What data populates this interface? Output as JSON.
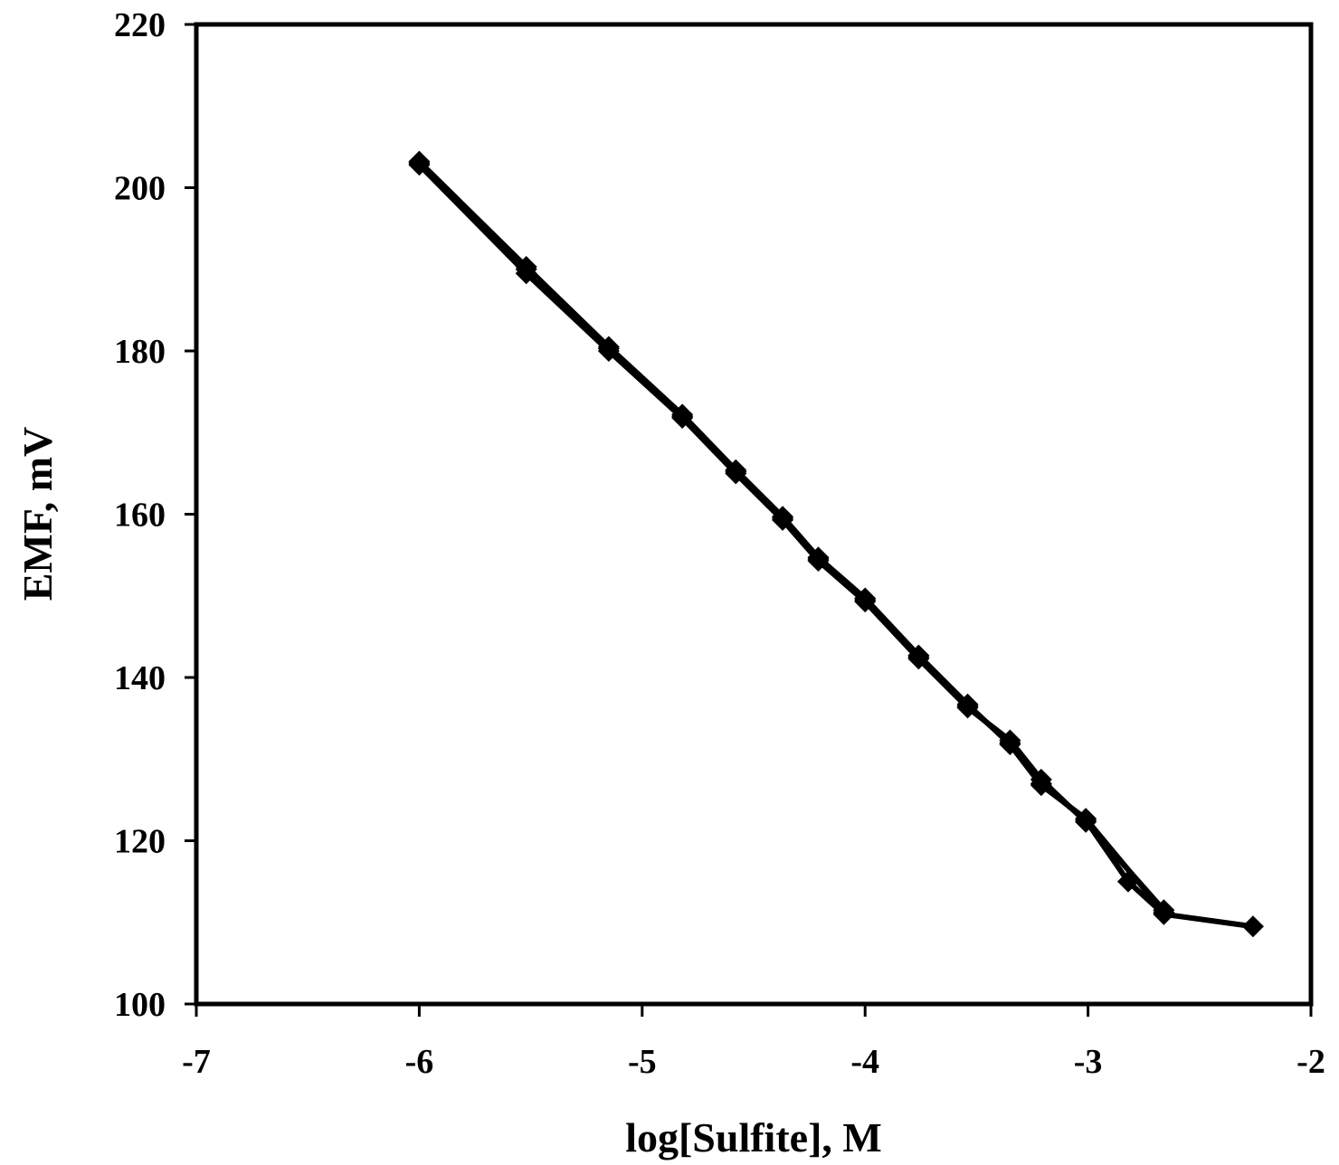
{
  "chart_data": {
    "type": "line",
    "title": "",
    "xlabel": "log[Sulfite], M",
    "ylabel": "EMF, mV",
    "xlim": [
      -7,
      -2
    ],
    "ylim": [
      100,
      220
    ],
    "x_ticks": [
      -7,
      -6,
      -5,
      -4,
      -3,
      -2
    ],
    "y_ticks": [
      100,
      120,
      140,
      160,
      180,
      200,
      220
    ],
    "x_tick_labels": [
      "-7",
      "-6",
      "-5",
      "-4",
      "-3",
      "-2"
    ],
    "y_tick_labels": [
      "100",
      "120",
      "140",
      "160",
      "180",
      "200",
      "220"
    ],
    "grid": false,
    "legend": "none",
    "line_color": "#000000",
    "marker": "diamond",
    "series": [
      {
        "x": [
          -6.0,
          -5.52,
          -5.15,
          -4.82,
          -4.58,
          -4.37,
          -4.21,
          -4.0,
          -3.76,
          -3.54,
          -3.35,
          -3.21,
          -3.01,
          -2.82,
          -2.66,
          -2.26
        ],
        "y": [
          203.0,
          190.0,
          180.3,
          172.0,
          165.2,
          159.5,
          154.5,
          149.5,
          142.5,
          136.5,
          132.0,
          127.0,
          122.5,
          115.0,
          111.0,
          109.5
        ]
      },
      {
        "x": [
          -6.0,
          -5.52,
          -5.15,
          -4.82,
          -4.58,
          -4.37,
          -4.21,
          -4.0,
          -3.76,
          -3.54,
          -3.35,
          -3.21,
          -3.01,
          -2.66
        ],
        "y": [
          202.8,
          189.5,
          180.0,
          171.8,
          165.0,
          159.3,
          154.3,
          149.3,
          142.3,
          136.3,
          132.3,
          127.5,
          122.3,
          111.5
        ]
      },
      {
        "x": [
          -6.0,
          -5.52,
          -5.15,
          -4.82,
          -4.58,
          -4.37,
          -4.21,
          -4.0,
          -3.76,
          -3.54,
          -3.35,
          -3.21,
          -3.01,
          -2.66
        ],
        "y": [
          203.2,
          190.3,
          180.5,
          172.2,
          165.4,
          159.7,
          154.7,
          149.7,
          142.7,
          136.7,
          131.8,
          126.8,
          122.7,
          111.2
        ]
      }
    ]
  }
}
